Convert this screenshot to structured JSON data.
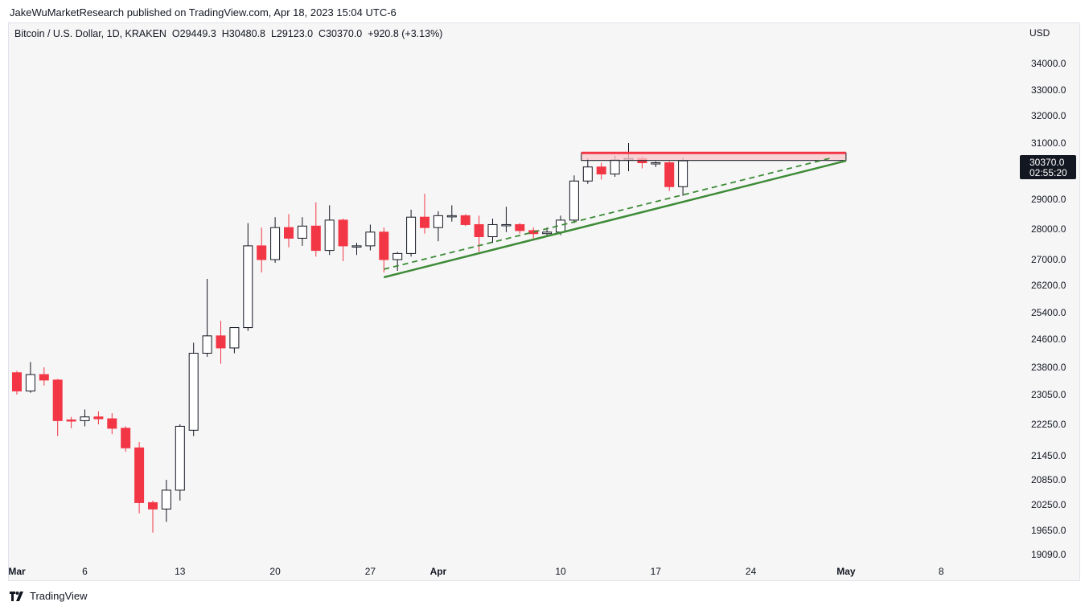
{
  "header": {
    "published": "JakeWuMarketResearch published on TradingView.com, Apr 18, 2023 15:04 UTC-6"
  },
  "legend": {
    "symbol": "Bitcoin / U.S. Dollar, 1D, KRAKEN",
    "open": "O29449.3",
    "high": "H30480.8",
    "low": "L29123.0",
    "close": "C30370.0",
    "change": "+920.8 (+3.13%)"
  },
  "footer": {
    "brand": "TradingView"
  },
  "colors": {
    "up": "#ffffff",
    "down": "#f23645",
    "trend": "#3d8b37",
    "zone": "#f23645",
    "zone_fill": "#f8c8cc"
  },
  "chart_data": {
    "type": "candlestick",
    "currency": "USD",
    "last_price": "30370.0",
    "countdown": "02:55:20",
    "y_ticks": [
      34000.0,
      33000.0,
      32000.0,
      31000.0,
      29000.0,
      28000.0,
      27000.0,
      26200.0,
      25400.0,
      24600.0,
      23800.0,
      23050.0,
      22250.0,
      21450.0,
      20850.0,
      20250.0,
      19650.0,
      19090.0
    ],
    "y_tick_labels": [
      "34000.0",
      "33000.0",
      "32000.0",
      "31000.0",
      "29000.0",
      "28000.0",
      "27000.0",
      "26200.0",
      "25400.0",
      "24600.0",
      "23800.0",
      "23050.0",
      "22250.0",
      "21450.0",
      "20850.0",
      "20250.0",
      "19650.0",
      "19090.0"
    ],
    "x_ticks": [
      {
        "label": "Mar",
        "day": 0,
        "bold": true
      },
      {
        "label": "6",
        "day": 5
      },
      {
        "label": "13",
        "day": 12
      },
      {
        "label": "20",
        "day": 19
      },
      {
        "label": "27",
        "day": 26
      },
      {
        "label": "Apr",
        "day": 31,
        "bold": true
      },
      {
        "label": "10",
        "day": 40
      },
      {
        "label": "17",
        "day": 47
      },
      {
        "label": "24",
        "day": 54
      },
      {
        "label": "May",
        "day": 61,
        "bold": true
      },
      {
        "label": "8",
        "day": 68
      }
    ],
    "candles": [
      {
        "o": 23650,
        "h": 23700,
        "l": 23050,
        "c": 23150
      },
      {
        "o": 23150,
        "h": 23950,
        "l": 23100,
        "c": 23600
      },
      {
        "o": 23600,
        "h": 23800,
        "l": 23300,
        "c": 23450
      },
      {
        "o": 23450,
        "h": 23480,
        "l": 21950,
        "c": 22350
      },
      {
        "o": 22370,
        "h": 22450,
        "l": 22150,
        "c": 22350
      },
      {
        "o": 22350,
        "h": 22650,
        "l": 22200,
        "c": 22450
      },
      {
        "o": 22450,
        "h": 22600,
        "l": 22250,
        "c": 22400
      },
      {
        "o": 22400,
        "h": 22550,
        "l": 22000,
        "c": 22150
      },
      {
        "o": 22150,
        "h": 22200,
        "l": 21550,
        "c": 21650
      },
      {
        "o": 21650,
        "h": 21800,
        "l": 20050,
        "c": 20300
      },
      {
        "o": 20300,
        "h": 20350,
        "l": 19600,
        "c": 20150
      },
      {
        "o": 20150,
        "h": 20850,
        "l": 19850,
        "c": 20600
      },
      {
        "o": 20600,
        "h": 22250,
        "l": 20350,
        "c": 22200
      },
      {
        "o": 22100,
        "h": 24500,
        "l": 21950,
        "c": 24200
      },
      {
        "o": 24200,
        "h": 26400,
        "l": 24100,
        "c": 24700
      },
      {
        "o": 24700,
        "h": 25150,
        "l": 23900,
        "c": 24350
      },
      {
        "o": 24350,
        "h": 24900,
        "l": 24200,
        "c": 24950
      },
      {
        "o": 24950,
        "h": 28200,
        "l": 24850,
        "c": 27450
      },
      {
        "o": 27450,
        "h": 28050,
        "l": 26600,
        "c": 27000
      },
      {
        "o": 27000,
        "h": 28400,
        "l": 26900,
        "c": 28050
      },
      {
        "o": 28050,
        "h": 28500,
        "l": 27400,
        "c": 27700
      },
      {
        "o": 27700,
        "h": 28400,
        "l": 27450,
        "c": 28100
      },
      {
        "o": 28100,
        "h": 28900,
        "l": 27100,
        "c": 27300
      },
      {
        "o": 27300,
        "h": 28800,
        "l": 27150,
        "c": 28300
      },
      {
        "o": 28300,
        "h": 28350,
        "l": 26950,
        "c": 27450
      },
      {
        "o": 27450,
        "h": 27550,
        "l": 27150,
        "c": 27450
      },
      {
        "o": 27450,
        "h": 28150,
        "l": 27300,
        "c": 27900
      },
      {
        "o": 27900,
        "h": 28050,
        "l": 26600,
        "c": 27000
      },
      {
        "o": 27000,
        "h": 27250,
        "l": 26650,
        "c": 27200
      },
      {
        "o": 27200,
        "h": 28650,
        "l": 27100,
        "c": 28400
      },
      {
        "o": 28400,
        "h": 29200,
        "l": 27850,
        "c": 28050
      },
      {
        "o": 28050,
        "h": 28600,
        "l": 27600,
        "c": 28450
      },
      {
        "o": 28450,
        "h": 28800,
        "l": 28250,
        "c": 28450
      },
      {
        "o": 28450,
        "h": 28500,
        "l": 28100,
        "c": 28150
      },
      {
        "o": 28150,
        "h": 28450,
        "l": 27250,
        "c": 27750
      },
      {
        "o": 27750,
        "h": 28350,
        "l": 27550,
        "c": 28150
      },
      {
        "o": 28150,
        "h": 28750,
        "l": 27900,
        "c": 28150
      },
      {
        "o": 28150,
        "h": 28200,
        "l": 27850,
        "c": 27950
      },
      {
        "o": 27950,
        "h": 28050,
        "l": 27700,
        "c": 27850
      },
      {
        "o": 27850,
        "h": 28050,
        "l": 27800,
        "c": 27900
      },
      {
        "o": 27900,
        "h": 28450,
        "l": 27800,
        "c": 28300
      },
      {
        "o": 28300,
        "h": 29850,
        "l": 28200,
        "c": 29650
      },
      {
        "o": 29650,
        "h": 30450,
        "l": 29550,
        "c": 30150
      },
      {
        "o": 30150,
        "h": 30300,
        "l": 29700,
        "c": 29900
      },
      {
        "o": 29900,
        "h": 30550,
        "l": 29800,
        "c": 30400
      },
      {
        "o": 30400,
        "h": 31000,
        "l": 30000,
        "c": 30450
      },
      {
        "o": 30450,
        "h": 30550,
        "l": 30100,
        "c": 30300
      },
      {
        "o": 30300,
        "h": 30350,
        "l": 30150,
        "c": 30300
      },
      {
        "o": 30300,
        "h": 30350,
        "l": 29300,
        "c": 29450
      },
      {
        "o": 29450,
        "h": 30480.8,
        "l": 29123,
        "c": 30370
      }
    ],
    "resistance_zone": {
      "top": 30650,
      "bottom": 30380,
      "from_day": 42,
      "to_day": 61
    },
    "support_line": {
      "from_day": 27,
      "from_value": 26450,
      "to_day": 61,
      "to_value": 30370
    },
    "support_line_dashed": {
      "from_day": 27,
      "from_value": 26700,
      "to_day": 60,
      "to_value": 30480
    }
  }
}
